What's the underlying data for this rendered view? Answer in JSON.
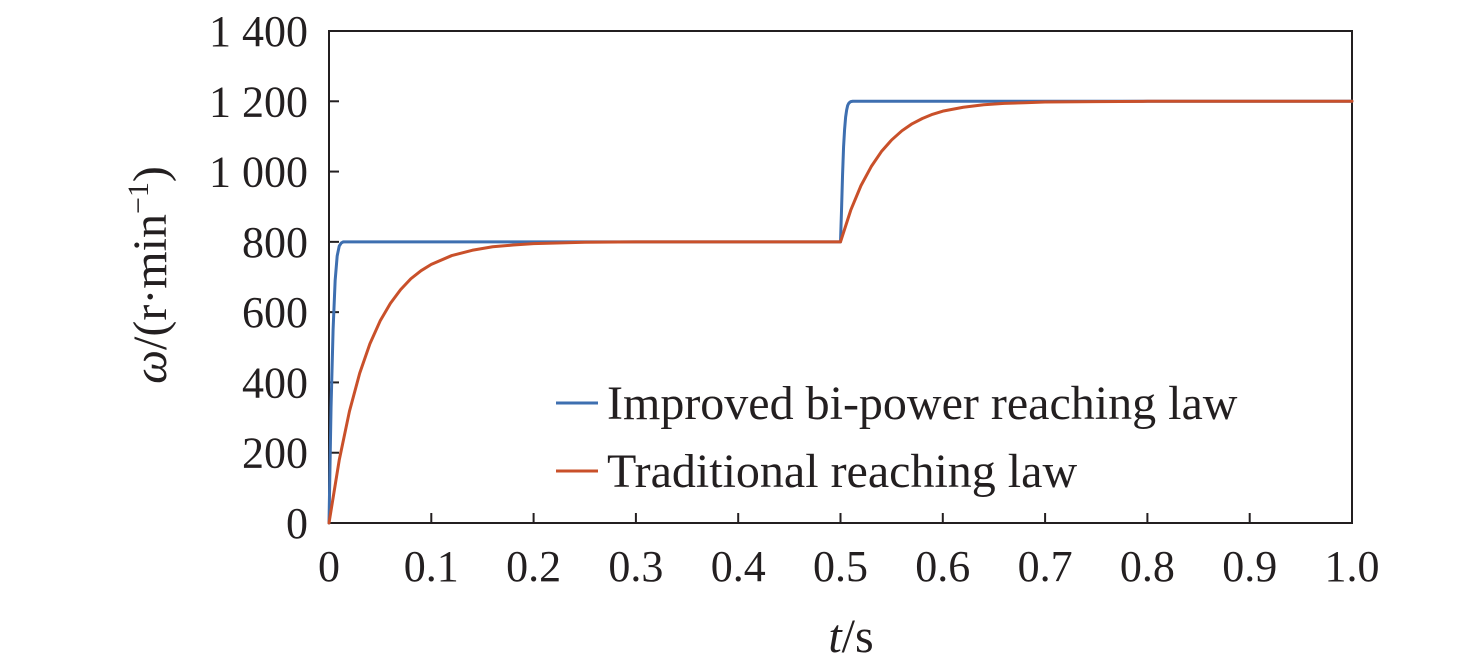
{
  "chart_data": {
    "type": "line",
    "xlabel": {
      "var": "t",
      "unit": "/s"
    },
    "ylabel": {
      "var": "ω",
      "unit": "/(r·min",
      "sup": "−1",
      "close": ")"
    },
    "xlim": [
      0,
      1.0
    ],
    "ylim": [
      0,
      1400
    ],
    "xticks": [
      0,
      0.1,
      0.2,
      0.3,
      0.4,
      0.5,
      0.6,
      0.7,
      0.8,
      0.9,
      1.0
    ],
    "xtick_labels": [
      "0",
      "0.1",
      "0.2",
      "0.3",
      "0.4",
      "0.5",
      "0.6",
      "0.7",
      "0.8",
      "0.9",
      "1.0"
    ],
    "yticks": [
      0,
      200,
      400,
      600,
      800,
      1000,
      1200,
      1400
    ],
    "ytick_labels": [
      "0",
      "200",
      "400",
      "600",
      "800",
      "1 000",
      "1 200",
      "1 400"
    ],
    "legend_position": "lower-right",
    "series": [
      {
        "name": "Improved bi-power reaching law",
        "color": "#3e6fb0",
        "x": [
          0,
          0.002,
          0.004,
          0.006,
          0.008,
          0.01,
          0.012,
          0.014,
          0.016,
          0.018,
          0.02,
          0.03,
          0.05,
          0.1,
          0.2,
          0.3,
          0.4,
          0.5,
          0.501,
          0.502,
          0.503,
          0.504,
          0.505,
          0.506,
          0.507,
          0.508,
          0.509,
          0.51,
          0.512,
          0.515,
          0.52,
          0.55,
          0.6,
          0.7,
          0.8,
          0.9,
          1.0
        ],
        "y": [
          0,
          330,
          550,
          690,
          760,
          788,
          797,
          800,
          800,
          800,
          800,
          800,
          800,
          800,
          800,
          800,
          800,
          800,
          890,
          990,
          1070,
          1120,
          1155,
          1175,
          1188,
          1194,
          1197,
          1199,
          1200,
          1200,
          1200,
          1200,
          1200,
          1200,
          1200,
          1200,
          1200
        ]
      },
      {
        "name": "Traditional reaching law",
        "color": "#c9502a",
        "x": [
          0,
          0.01,
          0.02,
          0.03,
          0.04,
          0.05,
          0.06,
          0.07,
          0.08,
          0.09,
          0.1,
          0.12,
          0.14,
          0.16,
          0.18,
          0.2,
          0.25,
          0.3,
          0.35,
          0.4,
          0.45,
          0.5,
          0.51,
          0.52,
          0.53,
          0.54,
          0.55,
          0.56,
          0.57,
          0.58,
          0.59,
          0.6,
          0.62,
          0.64,
          0.66,
          0.68,
          0.7,
          0.75,
          0.8,
          0.9,
          1.0
        ],
        "y": [
          0,
          179,
          318,
          426,
          510,
          575,
          625,
          664,
          695,
          718,
          736,
          761,
          776,
          786,
          791,
          795,
          799,
          800,
          800,
          800,
          800,
          800,
          890,
          960,
          1014,
          1057,
          1090,
          1116,
          1136,
          1151,
          1163,
          1172,
          1183,
          1190,
          1194,
          1196,
          1198,
          1199,
          1200,
          1200,
          1200
        ]
      }
    ]
  }
}
